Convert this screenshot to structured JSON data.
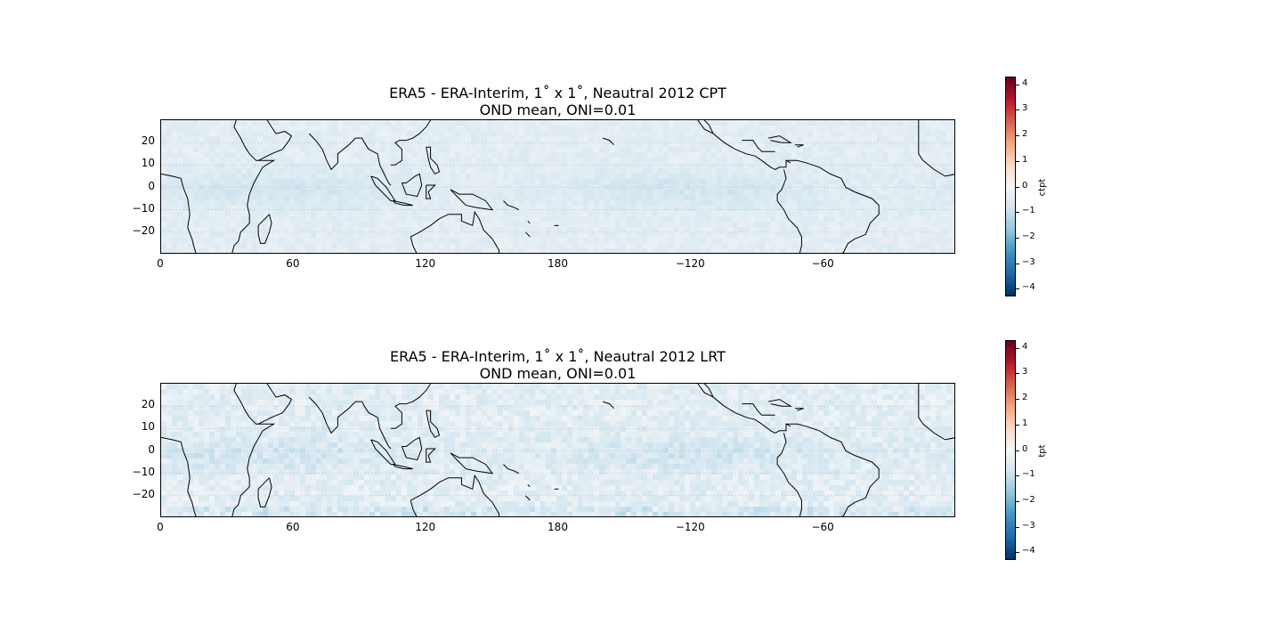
{
  "panels": [
    {
      "title_line1": "ERA5 - ERA-Interim, 1˚ x 1˚, Neautral 2012 CPT",
      "title_line2": "OND mean, ONI=0.01",
      "colorbar_label": "ctpt",
      "noise_strength": 0.18
    },
    {
      "title_line1": "ERA5 - ERA-Interim, 1˚ x 1˚, Neautral 2012 LRT",
      "title_line2": "OND mean, ONI=0.01",
      "colorbar_label": "tpt",
      "noise_strength": 0.32
    }
  ],
  "map": {
    "x_ticks": [
      "0",
      "60",
      "120",
      "180",
      "−120",
      "−60"
    ],
    "x_tick_values": [
      0,
      60,
      120,
      180,
      240,
      300
    ],
    "y_ticks": [
      "20",
      "10",
      "0",
      "−10",
      "−20"
    ],
    "y_tick_values": [
      20,
      10,
      0,
      -10,
      -20
    ],
    "lon_range": [
      0,
      360
    ],
    "lat_range": [
      -30,
      30
    ]
  },
  "colorbar": {
    "ticks": [
      "4",
      "3",
      "2",
      "1",
      "0",
      "−1",
      "−2",
      "−3",
      "−4"
    ],
    "tick_values": [
      4,
      3,
      2,
      1,
      0,
      -1,
      -2,
      -3,
      -4
    ],
    "range": [
      -4.3,
      4.3
    ],
    "colors": [
      "#053061",
      "#2166ac",
      "#4393c3",
      "#92c5de",
      "#d1e5f0",
      "#f7f7f7",
      "#fddbc7",
      "#f4a582",
      "#d6604d",
      "#b2182b",
      "#67001f"
    ]
  }
}
